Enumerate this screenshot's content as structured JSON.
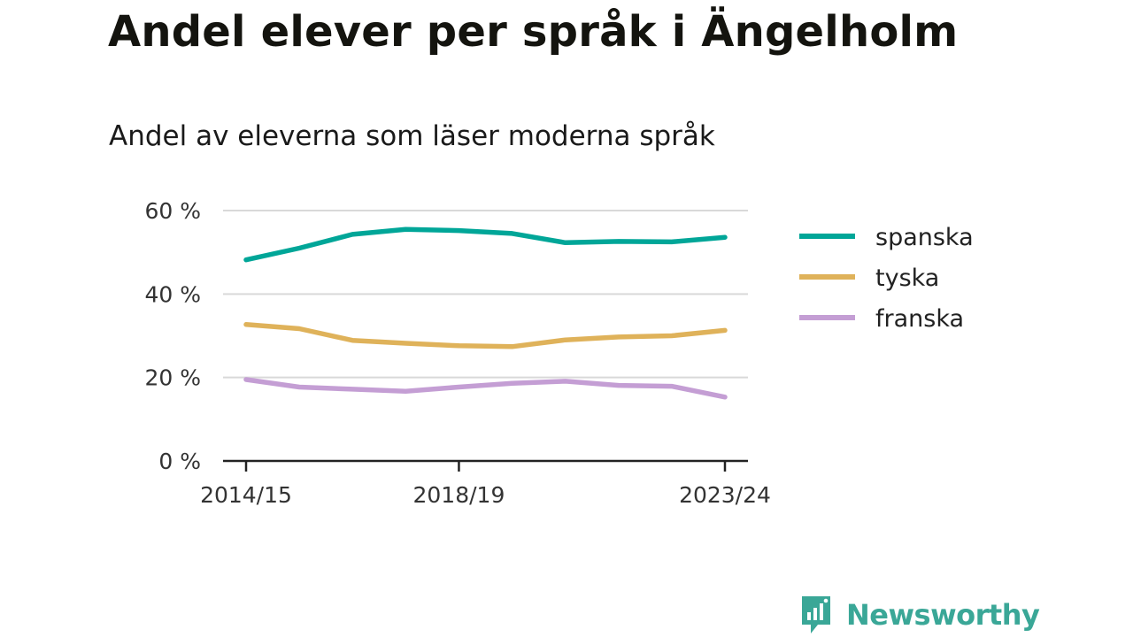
{
  "header": {
    "title": "Andel elever per språk i Ängelholm",
    "subtitle": "Andel av eleverna som läser moderna språk"
  },
  "brand": {
    "name": "Newsworthy",
    "icon": "newsworthy-logo-icon",
    "color": "#3aa797"
  },
  "chart_data": {
    "type": "line",
    "title": "Andel elever per språk i Ängelholm",
    "subtitle": "Andel av eleverna som läser moderna språk",
    "x": [
      "2014/15",
      "2015/16",
      "2016/17",
      "2017/18",
      "2018/19",
      "2019/20",
      "2020/21",
      "2021/22",
      "2022/23",
      "2023/24"
    ],
    "x_tick_labels": [
      "2014/15",
      "2018/19",
      "2023/24"
    ],
    "y_ticks": [
      0,
      20,
      40,
      60
    ],
    "y_tick_labels": [
      "0 %",
      "20 %",
      "40 %",
      "60 %"
    ],
    "ylim": [
      0,
      60
    ],
    "grid": true,
    "legend_position": "right",
    "series": [
      {
        "name": "spanska",
        "color": "#00a698",
        "values": [
          48.2,
          51.0,
          54.3,
          55.5,
          55.2,
          54.5,
          52.3,
          52.6,
          52.5,
          53.6
        ]
      },
      {
        "name": "tyska",
        "color": "#dfb25a",
        "values": [
          32.7,
          31.7,
          28.9,
          28.2,
          27.6,
          27.4,
          29.0,
          29.7,
          30.0,
          31.3
        ]
      },
      {
        "name": "franska",
        "color": "#c49ed4",
        "values": [
          19.5,
          17.7,
          17.2,
          16.7,
          17.7,
          18.6,
          19.1,
          18.1,
          17.9,
          15.3
        ]
      }
    ]
  }
}
